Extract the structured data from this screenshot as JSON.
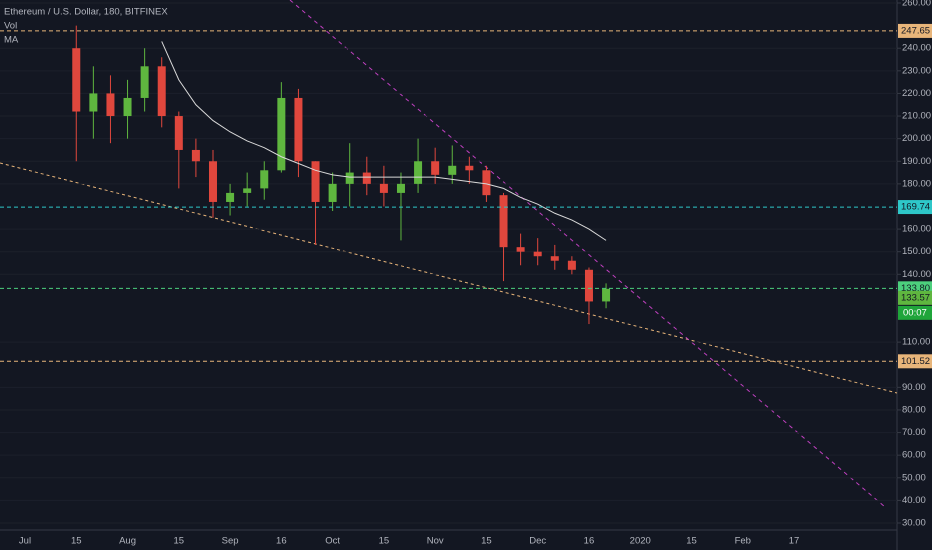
{
  "chart_data": {
    "type": "candlestick",
    "title": "Ethereum / U.S. Dollar, 180, BITFINEX",
    "legend_items": [
      "Vol",
      "MA"
    ],
    "countdown": "00:07",
    "categories": [
      "Jul",
      null,
      null,
      "15",
      null,
      null,
      "Aug",
      null,
      null,
      "15",
      null,
      null,
      "Sep",
      null,
      null,
      "16",
      null,
      null,
      "Oct",
      null,
      null,
      "15",
      null,
      null,
      "Nov",
      null,
      null,
      "15",
      null,
      null,
      "Dec",
      null,
      null,
      "16",
      null,
      null,
      "2020",
      null,
      null,
      "15",
      null,
      null,
      "Feb",
      null,
      null,
      "17",
      null,
      null,
      null,
      null,
      null
    ],
    "open": [
      null,
      null,
      null,
      240,
      212,
      220,
      210,
      218,
      232,
      210,
      195,
      190,
      172,
      176,
      178,
      186,
      218,
      190,
      172,
      180,
      185,
      180,
      176,
      180,
      190,
      184,
      188,
      186,
      175,
      152,
      150,
      148,
      146,
      142,
      128,
      null,
      null,
      null,
      null,
      null,
      null,
      null,
      null,
      null,
      null,
      null,
      null,
      null,
      null,
      null,
      null
    ],
    "high": [
      null,
      null,
      null,
      250,
      232,
      228,
      226,
      240,
      236,
      212,
      200,
      195,
      180,
      185,
      190,
      225,
      222,
      190,
      185,
      198,
      192,
      188,
      185,
      200,
      196,
      197,
      192,
      188,
      176,
      158,
      156,
      153,
      148,
      143,
      136,
      null,
      null,
      null,
      null,
      null,
      null,
      null,
      null,
      null,
      null,
      null,
      null,
      null,
      null,
      null,
      null
    ],
    "low": [
      null,
      null,
      null,
      190,
      200,
      198,
      200,
      212,
      205,
      178,
      183,
      165,
      166,
      170,
      173,
      185,
      183,
      153,
      168,
      170,
      175,
      170,
      155,
      176,
      180,
      180,
      180,
      172,
      137,
      144,
      144,
      142,
      140,
      118,
      125,
      null,
      null,
      null,
      null,
      null,
      null,
      null,
      null,
      null,
      null,
      null,
      null,
      null,
      null,
      null,
      null
    ],
    "close": [
      null,
      null,
      null,
      212,
      220,
      210,
      218,
      232,
      210,
      195,
      190,
      172,
      176,
      178,
      186,
      218,
      190,
      172,
      180,
      185,
      180,
      176,
      180,
      190,
      184,
      188,
      186,
      175,
      152,
      150,
      148,
      146,
      142,
      128,
      133.57,
      null,
      null,
      null,
      null,
      null,
      null,
      null,
      null,
      null,
      null,
      null,
      null,
      null,
      null,
      null,
      null
    ],
    "up_color": "#5fb63f",
    "down_color": "#e0473d",
    "series": [
      {
        "name": "MA",
        "color": "#d9d9d9",
        "values": [
          null,
          null,
          null,
          null,
          null,
          null,
          null,
          null,
          243,
          226,
          215,
          208,
          203,
          199,
          196,
          192,
          189,
          186,
          184,
          183,
          183,
          183,
          183,
          183,
          183,
          182,
          181,
          180,
          178,
          174,
          171,
          167,
          164,
          160,
          155,
          null,
          null,
          null,
          null,
          null,
          null,
          null,
          null,
          null,
          null,
          null,
          null,
          null,
          null,
          null,
          null
        ]
      }
    ],
    "levels": [
      {
        "value": 247.65,
        "label": "247.65",
        "color": "#e8b57a"
      },
      {
        "value": 169.74,
        "label": "169.74",
        "color": "#2ec7c9"
      },
      {
        "value": 133.8,
        "label": "133.80",
        "color": "#4cd07d"
      },
      {
        "value": 101.52,
        "label": "101.52",
        "color": "#e8b57a"
      }
    ],
    "ylim": [
      30,
      260
    ],
    "yticks": [
      {
        "value": 260,
        "label": "260.00"
      },
      {
        "value": 240,
        "label": "240.00"
      },
      {
        "value": 230,
        "label": "230.00"
      },
      {
        "value": 220,
        "label": "220.00"
      },
      {
        "value": 210,
        "label": "210.00"
      },
      {
        "value": 200,
        "label": "200.00"
      },
      {
        "value": 190,
        "label": "190.00"
      },
      {
        "value": 180,
        "label": "180.00"
      },
      {
        "value": 160,
        "label": "160.00"
      },
      {
        "value": 150,
        "label": "150.00"
      },
      {
        "value": 140,
        "label": "140.00"
      },
      {
        "value": 110,
        "label": "110.00"
      },
      {
        "value": 90,
        "label": "90.00"
      },
      {
        "value": 80,
        "label": "80.00"
      },
      {
        "value": 70,
        "label": "70.00"
      },
      {
        "value": 60,
        "label": "60.00"
      },
      {
        "value": 50,
        "label": "50.00"
      },
      {
        "value": 40,
        "label": "40.00"
      },
      {
        "value": 30,
        "label": "30.00"
      }
    ],
    "grid": true
  }
}
